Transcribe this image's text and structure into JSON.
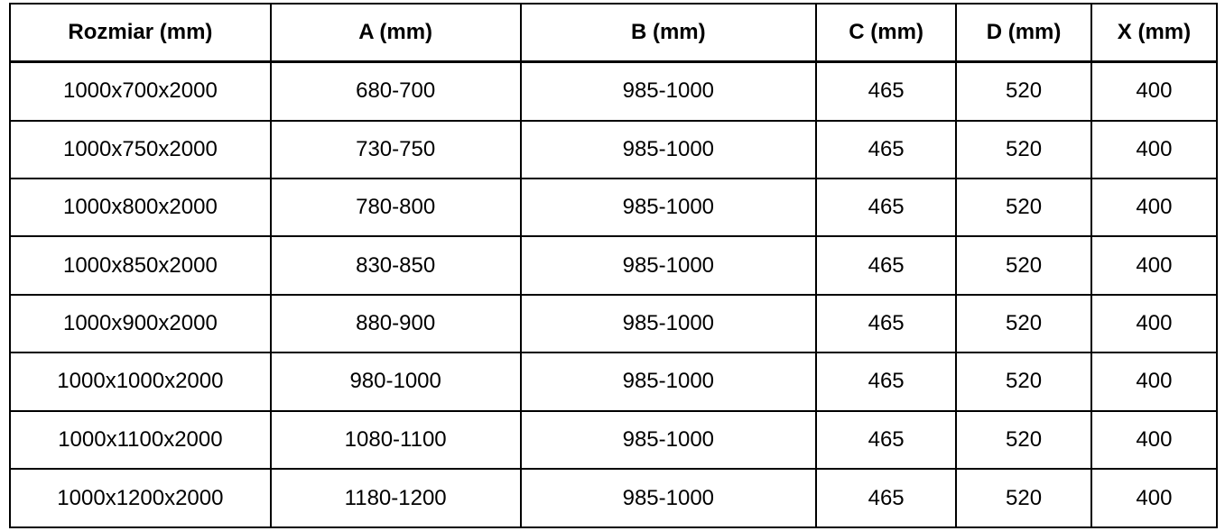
{
  "table": {
    "columns": [
      {
        "key": "rozmiar",
        "label": "Rozmiar (mm)"
      },
      {
        "key": "a",
        "label": "A (mm)"
      },
      {
        "key": "b",
        "label": "B (mm)"
      },
      {
        "key": "c",
        "label": "C (mm)"
      },
      {
        "key": "d",
        "label": "D (mm)"
      },
      {
        "key": "x",
        "label": "X (mm)"
      }
    ],
    "rows": [
      [
        "1000x700x2000",
        "680-700",
        "985-1000",
        "465",
        "520",
        "400"
      ],
      [
        "1000x750x2000",
        "730-750",
        "985-1000",
        "465",
        "520",
        "400"
      ],
      [
        "1000x800x2000",
        "780-800",
        "985-1000",
        "465",
        "520",
        "400"
      ],
      [
        "1000x850x2000",
        "830-850",
        "985-1000",
        "465",
        "520",
        "400"
      ],
      [
        "1000x900x2000",
        "880-900",
        "985-1000",
        "465",
        "520",
        "400"
      ],
      [
        "1000x1000x2000",
        "980-1000",
        "985-1000",
        "465",
        "520",
        "400"
      ],
      [
        "1000x1100x2000",
        "1080-1100",
        "985-1000",
        "465",
        "520",
        "400"
      ],
      [
        "1000x1200x2000",
        "1180-1200",
        "985-1000",
        "465",
        "520",
        "400"
      ]
    ]
  },
  "colors": {
    "border": "#000000",
    "background": "#ffffff",
    "text": "#000000"
  }
}
